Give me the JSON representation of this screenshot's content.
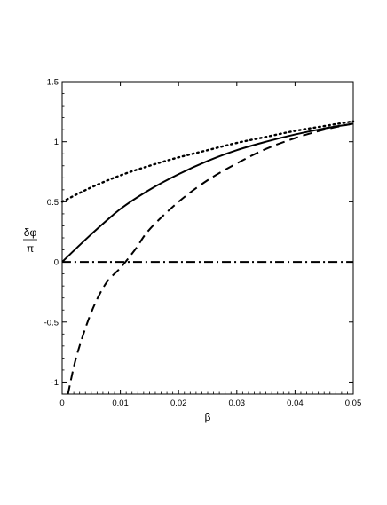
{
  "chart_data": {
    "type": "line",
    "xlabel": "β",
    "ylabel": {
      "numerator": "δφ",
      "denominator": "π"
    },
    "xlim": [
      0,
      0.05
    ],
    "ylim": [
      -1.1,
      1.5
    ],
    "xticks": [
      0,
      0.01,
      0.02,
      0.03,
      0.04,
      0.05
    ],
    "xtick_labels": [
      "0",
      "0.01",
      "0.02",
      "0.03",
      "0.04",
      "0.05"
    ],
    "yticks": [
      -1,
      -0.5,
      0,
      0.5,
      1,
      1.5
    ],
    "ytick_labels": [
      "-1",
      "-0.5",
      "0",
      "0.5",
      "1",
      "1.5"
    ],
    "grid": false,
    "legend": null,
    "series": [
      {
        "style": "dotted",
        "x": [
          0,
          0.005,
          0.01,
          0.015,
          0.02,
          0.025,
          0.03,
          0.035,
          0.04,
          0.045,
          0.05
        ],
        "y": [
          0.5,
          0.62,
          0.72,
          0.8,
          0.87,
          0.93,
          0.99,
          1.04,
          1.09,
          1.13,
          1.17
        ]
      },
      {
        "style": "solid",
        "x": [
          0,
          0.005,
          0.01,
          0.015,
          0.02,
          0.025,
          0.03,
          0.035,
          0.04,
          0.045,
          0.05
        ],
        "y": [
          0,
          0.23,
          0.44,
          0.6,
          0.73,
          0.84,
          0.93,
          1.0,
          1.06,
          1.11,
          1.15
        ]
      },
      {
        "style": "dashed",
        "x": [
          0.001,
          0.0025,
          0.005,
          0.0075,
          0.01,
          0.0125,
          0.015,
          0.02,
          0.025,
          0.03,
          0.035,
          0.04,
          0.045,
          0.05
        ],
        "y": [
          -1.1,
          -0.78,
          -0.42,
          -0.18,
          -0.05,
          0.1,
          0.27,
          0.5,
          0.68,
          0.82,
          0.94,
          1.03,
          1.1,
          1.15
        ]
      },
      {
        "style": "dashdot",
        "x": [
          0,
          0.05
        ],
        "y": [
          0,
          0
        ]
      }
    ]
  }
}
